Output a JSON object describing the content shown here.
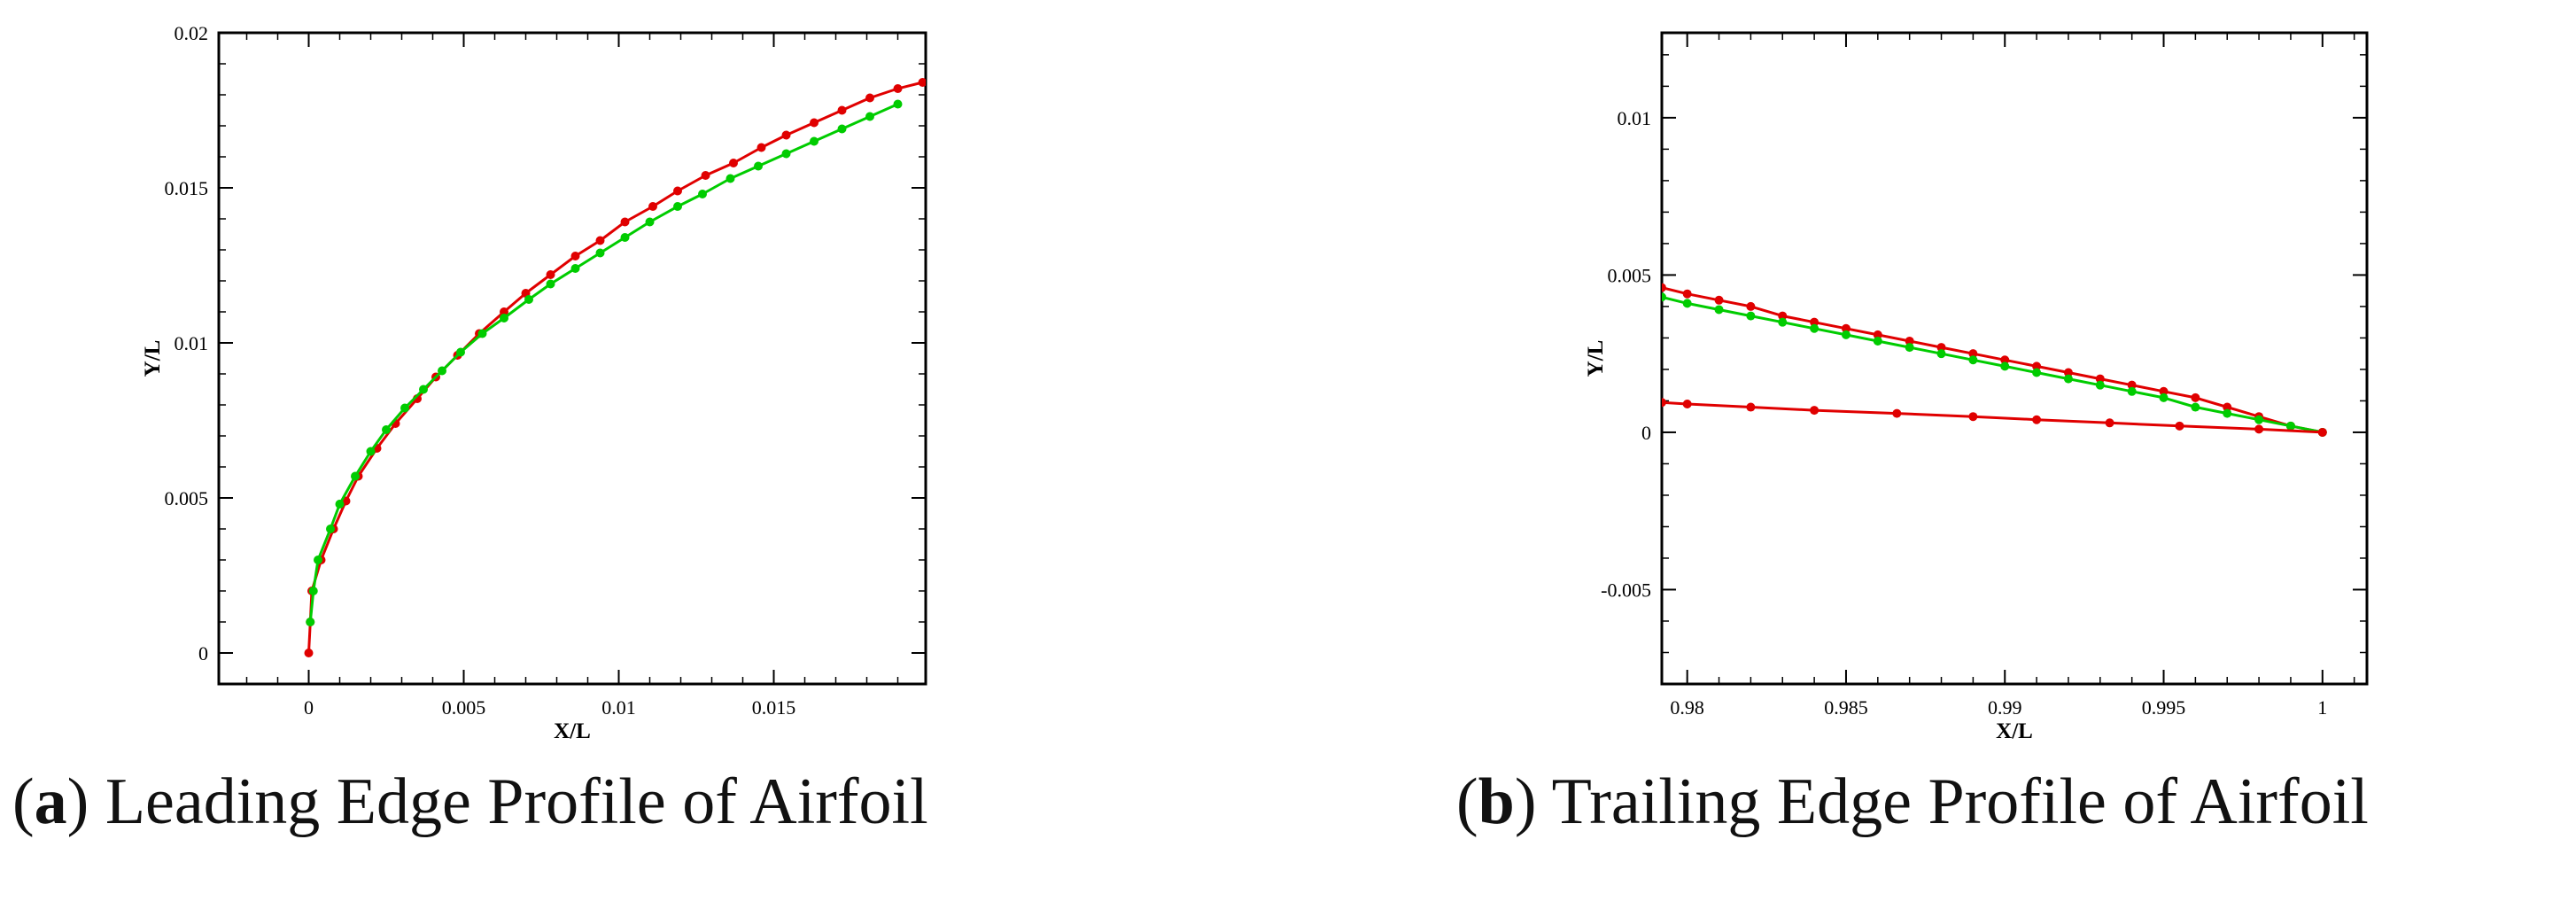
{
  "colors": {
    "red": "#e00000",
    "green": "#00cc00",
    "axis": "#000000"
  },
  "chart_data": [
    {
      "type": "line",
      "caption_label": "a",
      "caption_text": "Leading Edge Profile of Airfoil",
      "xlabel": "X/L",
      "ylabel": "Y/L",
      "xlim": [
        -0.0029,
        0.0199
      ],
      "ylim": [
        -0.001,
        0.02
      ],
      "xticks": [
        0,
        0.005,
        0.01,
        0.015
      ],
      "xtick_labels": [
        "0",
        "0.005",
        "0.01",
        "0.015"
      ],
      "yticks": [
        0,
        0.005,
        0.01,
        0.015,
        0.02
      ],
      "ytick_labels": [
        "0",
        "0.005",
        "0.01",
        "0.015",
        "0.02"
      ],
      "grid": false,
      "series": [
        {
          "color": "#e00000",
          "x": [
            0,
            5e-05,
            0.0001,
            0.0004,
            0.0008,
            0.0012,
            0.0016,
            0.0022,
            0.0028,
            0.0035,
            0.0041,
            0.0048,
            0.0055,
            0.0063,
            0.007,
            0.0078,
            0.0086,
            0.0094,
            0.0102,
            0.0111,
            0.0119,
            0.0128,
            0.0137,
            0.0146,
            0.0154,
            0.0163,
            0.0172,
            0.0181,
            0.019,
            0.0198
          ],
          "y": [
            0,
            0.001,
            0.002,
            0.003,
            0.004,
            0.0049,
            0.0057,
            0.0066,
            0.0074,
            0.0082,
            0.0089,
            0.0096,
            0.0103,
            0.011,
            0.0116,
            0.0122,
            0.0128,
            0.0133,
            0.0139,
            0.0144,
            0.0149,
            0.0154,
            0.0158,
            0.0163,
            0.0167,
            0.0171,
            0.0175,
            0.0179,
            0.0182,
            0.0184
          ]
        },
        {
          "color": "#00cc00",
          "x": [
            5e-05,
            0.00015,
            0.0003,
            0.0007,
            0.001,
            0.0015,
            0.002,
            0.0025,
            0.0031,
            0.0037,
            0.0043,
            0.0049,
            0.0056,
            0.0063,
            0.0071,
            0.0078,
            0.0086,
            0.0094,
            0.0102,
            0.011,
            0.0119,
            0.0127,
            0.0136,
            0.0145,
            0.0154,
            0.0163,
            0.0172,
            0.0181,
            0.019
          ],
          "y": [
            0.001,
            0.002,
            0.003,
            0.004,
            0.0048,
            0.0057,
            0.0065,
            0.0072,
            0.0079,
            0.0085,
            0.0091,
            0.0097,
            0.0103,
            0.0108,
            0.0114,
            0.0119,
            0.0124,
            0.0129,
            0.0134,
            0.0139,
            0.0144,
            0.0148,
            0.0153,
            0.0157,
            0.0161,
            0.0165,
            0.0169,
            0.0173,
            0.0177
          ]
        }
      ]
    },
    {
      "type": "line",
      "caption_label": "b",
      "caption_text": "Trailing Edge Profile of Airfoil",
      "xlabel": "X/L",
      "ylabel": "Y/L",
      "xlim": [
        0.9792,
        1.0014
      ],
      "ylim": [
        -0.008,
        0.0127
      ],
      "xticks": [
        0.98,
        0.985,
        0.99,
        0.995,
        1
      ],
      "xtick_labels": [
        "0.98",
        "0.985",
        "0.99",
        "0.995",
        "1"
      ],
      "yticks": [
        -0.005,
        0,
        0.005,
        0.01
      ],
      "ytick_labels": [
        "-0.005",
        "0",
        "0.005",
        "0.01"
      ],
      "grid": false,
      "series": [
        {
          "color": "#e00000",
          "x": [
            0.9792,
            0.98,
            0.981,
            0.982,
            0.983,
            0.984,
            0.985,
            0.986,
            0.987,
            0.988,
            0.989,
            0.99,
            0.991,
            0.992,
            0.993,
            0.994,
            0.995,
            0.996,
            0.997,
            0.998,
            0.999,
            1
          ],
          "y": [
            0.0046,
            0.0044,
            0.0042,
            0.004,
            0.0037,
            0.0035,
            0.0033,
            0.0031,
            0.0029,
            0.0027,
            0.0025,
            0.0023,
            0.0021,
            0.0019,
            0.0017,
            0.0015,
            0.0013,
            0.0011,
            0.0008,
            0.0005,
            0.0002,
            0
          ]
        },
        {
          "color": "#00cc00",
          "x": [
            0.9792,
            0.98,
            0.981,
            0.982,
            0.983,
            0.984,
            0.985,
            0.986,
            0.987,
            0.988,
            0.989,
            0.99,
            0.991,
            0.992,
            0.993,
            0.994,
            0.995,
            0.996,
            0.997,
            0.998,
            0.999,
            1
          ],
          "y": [
            0.0043,
            0.0041,
            0.0039,
            0.0037,
            0.0035,
            0.0033,
            0.0031,
            0.0029,
            0.0027,
            0.0025,
            0.0023,
            0.0021,
            0.0019,
            0.0017,
            0.0015,
            0.0013,
            0.0011,
            0.0008,
            0.0006,
            0.0004,
            0.0002,
            0
          ]
        },
        {
          "color": "#e00000",
          "x": [
            0.9792,
            0.98,
            0.982,
            0.984,
            0.9866,
            0.989,
            0.991,
            0.9933,
            0.9955,
            0.998,
            1
          ],
          "y": [
            0.00095,
            0.0009,
            0.0008,
            0.0007,
            0.0006,
            0.0005,
            0.0004,
            0.0003,
            0.0002,
            0.0001,
            0
          ]
        }
      ]
    }
  ]
}
